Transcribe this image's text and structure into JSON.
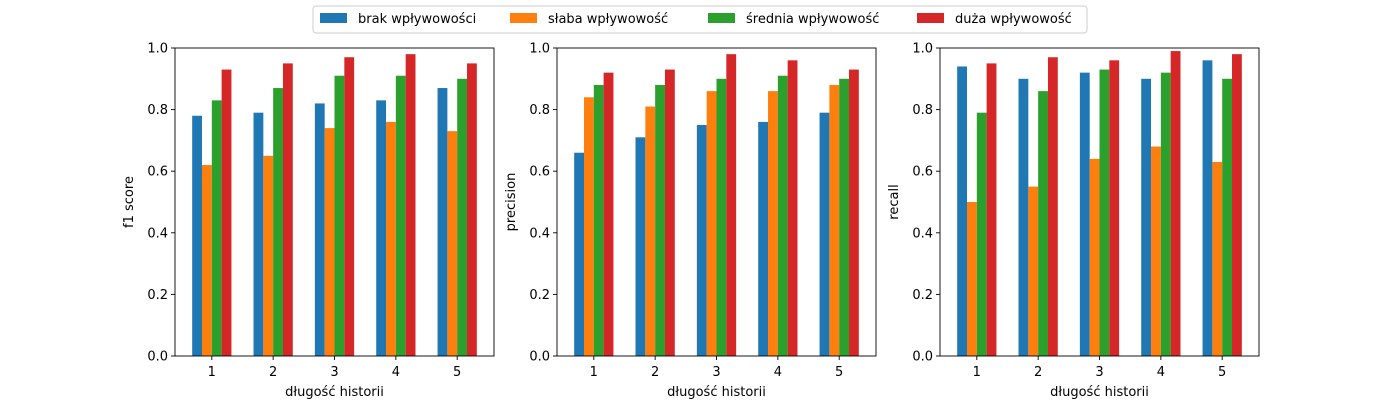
{
  "colors": [
    "#1f77b4",
    "#ff7f0e",
    "#2ca02c",
    "#d62728"
  ],
  "legend": {
    "placement": "top-center",
    "entries": [
      "brak wpływowości",
      "słaba wpływowość",
      "średnia wpływowość",
      "duża wpływowość"
    ]
  },
  "chart_data": [
    {
      "type": "bar",
      "xlabel": "długość historii",
      "ylabel": "f1 score",
      "categories": [
        "1",
        "2",
        "3",
        "4",
        "5"
      ],
      "ylim": [
        0,
        1
      ],
      "yticks": [
        "0.0",
        "0.2",
        "0.4",
        "0.6",
        "0.8",
        "1.0"
      ],
      "grid": false,
      "series": [
        {
          "name": "brak wpływowości",
          "values": [
            0.78,
            0.79,
            0.82,
            0.83,
            0.87
          ]
        },
        {
          "name": "słaba wpływowość",
          "values": [
            0.62,
            0.65,
            0.74,
            0.76,
            0.73
          ]
        },
        {
          "name": "średnia wpływowość",
          "values": [
            0.83,
            0.87,
            0.91,
            0.91,
            0.9
          ]
        },
        {
          "name": "duża wpływowość",
          "values": [
            0.93,
            0.95,
            0.97,
            0.98,
            0.95
          ]
        }
      ]
    },
    {
      "type": "bar",
      "xlabel": "długość historii",
      "ylabel": "precision",
      "categories": [
        "1",
        "2",
        "3",
        "4",
        "5"
      ],
      "ylim": [
        0,
        1
      ],
      "yticks": [
        "0.0",
        "0.2",
        "0.4",
        "0.6",
        "0.8",
        "1.0"
      ],
      "grid": false,
      "series": [
        {
          "name": "brak wpływowości",
          "values": [
            0.66,
            0.71,
            0.75,
            0.76,
            0.79
          ]
        },
        {
          "name": "słaba wpływowość",
          "values": [
            0.84,
            0.81,
            0.86,
            0.86,
            0.88
          ]
        },
        {
          "name": "średnia wpływowość",
          "values": [
            0.88,
            0.88,
            0.9,
            0.91,
            0.9
          ]
        },
        {
          "name": "duża wpływowość",
          "values": [
            0.92,
            0.93,
            0.98,
            0.96,
            0.93
          ]
        }
      ]
    },
    {
      "type": "bar",
      "xlabel": "długość historii",
      "ylabel": "recall",
      "categories": [
        "1",
        "2",
        "3",
        "4",
        "5"
      ],
      "ylim": [
        0,
        1
      ],
      "yticks": [
        "0.0",
        "0.2",
        "0.4",
        "0.6",
        "0.8",
        "1.0"
      ],
      "grid": false,
      "series": [
        {
          "name": "brak wpływowości",
          "values": [
            0.94,
            0.9,
            0.92,
            0.9,
            0.96
          ]
        },
        {
          "name": "słaba wpływowość",
          "values": [
            0.5,
            0.55,
            0.64,
            0.68,
            0.63
          ]
        },
        {
          "name": "średnia wpływowość",
          "values": [
            0.79,
            0.86,
            0.93,
            0.92,
            0.9
          ]
        },
        {
          "name": "duża wpływowość",
          "values": [
            0.95,
            0.97,
            0.96,
            0.99,
            0.98
          ]
        }
      ]
    }
  ]
}
